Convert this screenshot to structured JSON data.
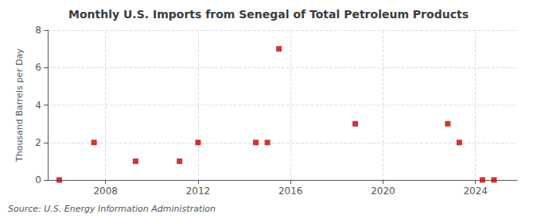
{
  "chart_data": {
    "type": "scatter",
    "title": "Monthly U.S. Imports from Senegal of Total Petroleum Products",
    "ylabel": "Thousand Barrels per Day",
    "source": "Source: U.S. Energy Information Administration",
    "x": [
      2006.0,
      2007.5,
      2009.3,
      2011.2,
      2012.0,
      2014.5,
      2015.0,
      2015.5,
      2018.8,
      2022.8,
      2023.3,
      2024.3,
      2024.8
    ],
    "values": [
      0,
      2,
      1,
      1,
      2,
      2,
      2,
      7,
      3,
      3,
      2,
      0,
      0
    ],
    "color": "#cc0000",
    "marker": "square",
    "xlim": [
      2005.5,
      2025.8
    ],
    "xticks": [
      2008,
      2012,
      2016,
      2020,
      2024
    ],
    "ylim": [
      0,
      8
    ],
    "yticks": [
      0,
      2,
      4,
      6,
      8
    ],
    "grid": true
  }
}
